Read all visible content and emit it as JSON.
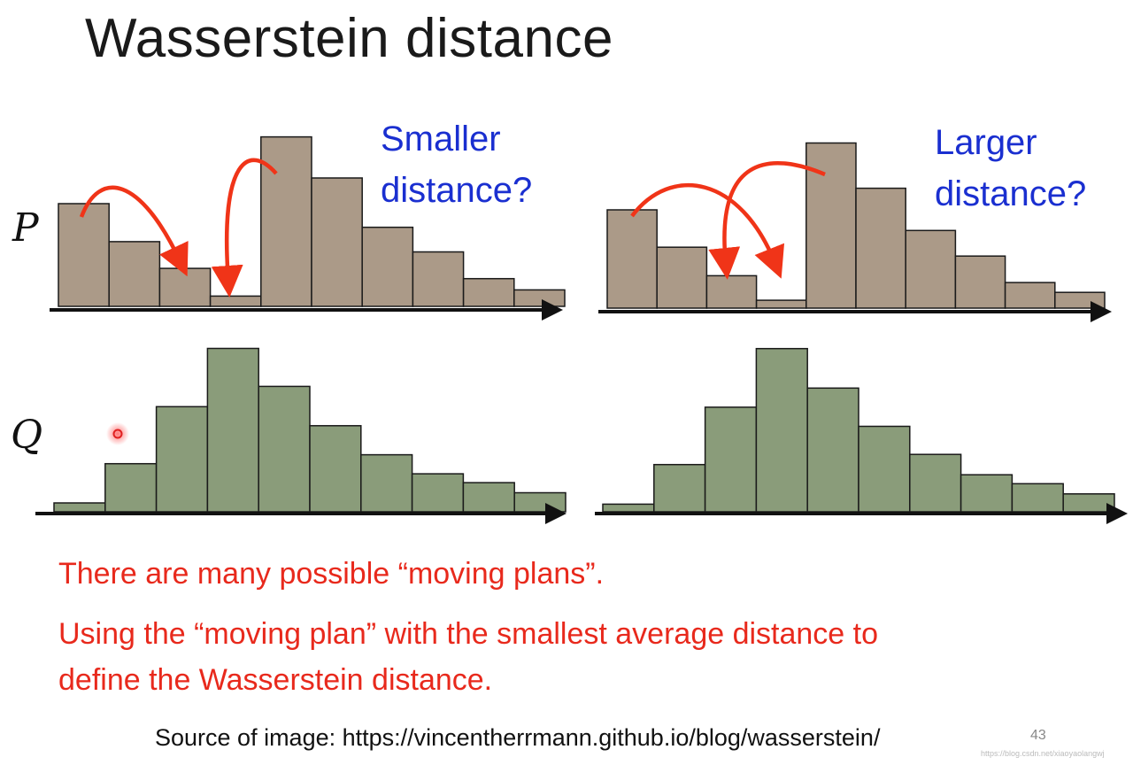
{
  "title": "Wasserstein distance",
  "labels": {
    "p": "P",
    "q": "Q"
  },
  "callouts": {
    "left": [
      "Smaller",
      "distance?"
    ],
    "right": [
      "Larger",
      "distance?"
    ]
  },
  "notes": [
    "There are many possible “moving plans”.",
    "Using the “moving plan” with the smallest average distance to",
    "define the Wasserstein distance."
  ],
  "source": "Source of image: https://vincentherrmann.github.io/blog/wasserstein/",
  "page_number": "43",
  "watermark": "https://blog.csdn.net/xiaoyaolangwj",
  "colors": {
    "p_bar": "#ab9a88",
    "q_bar": "#8a9c7a",
    "arrow": "#f03418",
    "callout": "#1a2fd0",
    "note": "#e8291c"
  },
  "chart_data": [
    {
      "type": "bar",
      "series": [
        {
          "values": [
            10,
            6.3,
            3.7,
            1,
            16.5,
            12.5,
            7.7,
            5.3,
            2.7,
            1.6
          ]
        }
      ]
    },
    {
      "type": "bar",
      "series": [
        {
          "values": [
            10,
            6.2,
            3.3,
            0.8,
            16.8,
            12.2,
            7.9,
            5.3,
            2.6,
            1.6
          ]
        }
      ]
    },
    {
      "type": "bar",
      "series": [
        {
          "values": [
            0.7,
            3.8,
            8.3,
            12.9,
            9.9,
            6.8,
            4.5,
            3.0,
            2.3,
            1.5
          ]
        }
      ]
    },
    {
      "type": "bar",
      "series": [
        {
          "values": [
            0.6,
            3.7,
            8.2,
            12.8,
            9.7,
            6.7,
            4.5,
            2.9,
            2.2,
            1.4
          ]
        }
      ]
    }
  ]
}
